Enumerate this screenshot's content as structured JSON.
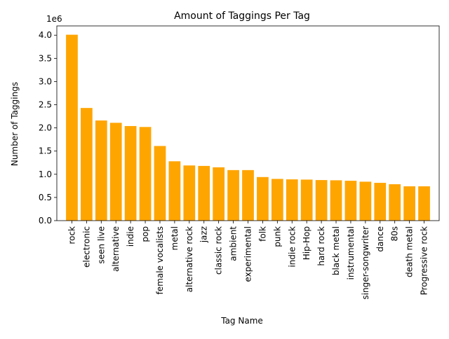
{
  "chart_data": {
    "type": "bar",
    "title": "Amount of Taggings Per Tag",
    "xlabel": "Tag Name",
    "ylabel": "Number of Taggings",
    "y_offset_label": "1e6",
    "ylim": [
      0,
      4200000
    ],
    "yticks": [
      "0.0",
      "0.5",
      "1.0",
      "1.5",
      "2.0",
      "2.5",
      "3.0",
      "3.5",
      "4.0"
    ],
    "bar_color": "#FFA500",
    "grid": false,
    "categories": [
      "rock",
      "electronic",
      "seen live",
      "alternative",
      "indie",
      "pop",
      "female vocalists",
      "metal",
      "alternative rock",
      "jazz",
      "classic rock",
      "ambient",
      "experimental",
      "folk",
      "punk",
      "indie rock",
      "Hip-Hop",
      "hard rock",
      "black metal",
      "instrumental",
      "singer-songwriter",
      "dance",
      "80s",
      "death metal",
      "Progressive rock"
    ],
    "values": [
      4010000,
      2430000,
      2160000,
      2110000,
      2040000,
      2020000,
      1610000,
      1280000,
      1190000,
      1180000,
      1150000,
      1090000,
      1090000,
      940000,
      900000,
      890000,
      885000,
      875000,
      870000,
      860000,
      840000,
      815000,
      785000,
      740000,
      740000
    ]
  }
}
